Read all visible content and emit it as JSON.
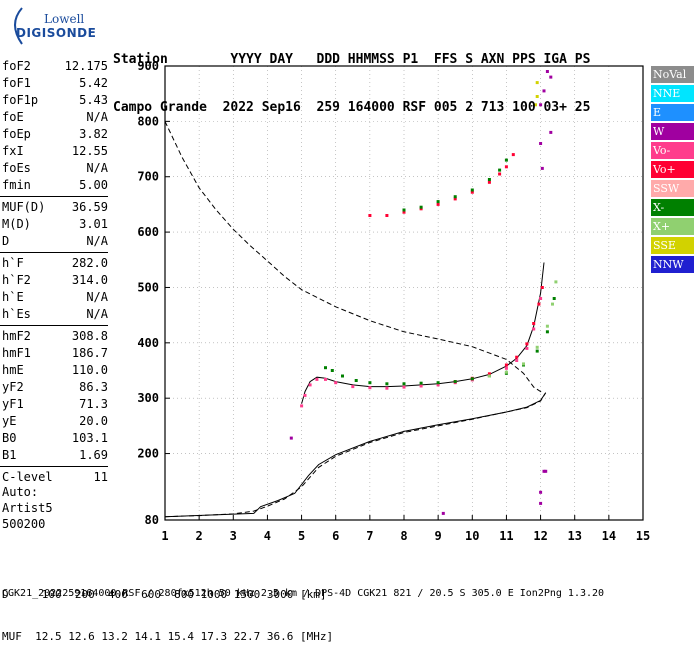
{
  "logo": {
    "line1": "Lowell",
    "line2": "DIGISONDE"
  },
  "header": {
    "line1": "Station        YYYY DAY   DDD HHMMSS P1  FFS S AXN PPS IGA PS",
    "line2": "Campo Grande  2022 Sep16  259 164000 RSF 005 2 713 100 03+ 25"
  },
  "params": [
    {
      "group": [
        {
          "key": "foF2",
          "val": "12.175"
        },
        {
          "key": "foF1",
          "val": "5.42"
        },
        {
          "key": "foF1p",
          "val": "5.43"
        },
        {
          "key": "foE",
          "val": "N/A"
        },
        {
          "key": "foEp",
          "val": "3.82"
        },
        {
          "key": "fxI",
          "val": "12.55"
        },
        {
          "key": "foEs",
          "val": "N/A"
        },
        {
          "key": "fmin",
          "val": "5.00"
        }
      ]
    },
    {
      "group": [
        {
          "key": "MUF(D)",
          "val": "36.59"
        },
        {
          "key": "M(D)",
          "val": "3.01"
        },
        {
          "key": "D",
          "val": "N/A"
        }
      ]
    },
    {
      "group": [
        {
          "key": "h`F",
          "val": "282.0"
        },
        {
          "key": "h`F2",
          "val": "314.0"
        },
        {
          "key": "h`E",
          "val": "N/A"
        },
        {
          "key": "h`Es",
          "val": "N/A"
        }
      ]
    },
    {
      "group": [
        {
          "key": "hmF2",
          "val": "308.8"
        },
        {
          "key": "hmF1",
          "val": "186.7"
        },
        {
          "key": "hmE",
          "val": "110.0"
        },
        {
          "key": "yF2",
          "val": "86.3"
        },
        {
          "key": "yF1",
          "val": "71.3"
        },
        {
          "key": "yE",
          "val": "20.0"
        },
        {
          "key": "B0",
          "val": "103.1"
        },
        {
          "key": "B1",
          "val": "1.69"
        }
      ]
    },
    {
      "group": [
        {
          "key": "C-level",
          "val": "11"
        }
      ]
    }
  ],
  "auto": {
    "line1": "Auto:",
    "line2": "Artist5",
    "line3": "500200"
  },
  "legend": [
    {
      "label": "NoVal",
      "color": "#8c8c8c"
    },
    {
      "label": "NNE",
      "color": "#00e5ff"
    },
    {
      "label": "E",
      "color": "#1e90ff"
    },
    {
      "label": "W",
      "color": "#a000a0"
    },
    {
      "label": "Vo-",
      "color": "#ff3c8c"
    },
    {
      "label": "Vo+",
      "color": "#ff0033"
    },
    {
      "label": "SSW",
      "color": "#ffaaaa"
    },
    {
      "label": "X-",
      "color": "#008000"
    },
    {
      "label": "X+",
      "color": "#90d070"
    },
    {
      "label": "SSE",
      "color": "#d2d200"
    },
    {
      "label": "NNW",
      "color": "#2020d0"
    }
  ],
  "bottom": {
    "line1": "D     100  200  400  600  800 1000 1500 3000 [km]",
    "line2": "MUF  12.5 12.6 13.2 14.1 15.4 17.3 22.7 36.6 [MHz]"
  },
  "footer": "CGK21_2022259164000.RSF / 280fx512h 50 kHz 2.5 km / DPS-4D CGK21 821 / 20.5 S 305.0 E Ion2Png 1.3.20",
  "chart_data": {
    "type": "scatter",
    "xlim": [
      1,
      15
    ],
    "ylim": [
      80,
      900
    ],
    "x_ticks": [
      1,
      2,
      3,
      4,
      5,
      6,
      7,
      8,
      9,
      10,
      11,
      12,
      13,
      14,
      15
    ],
    "y_ticks": [
      80,
      200,
      300,
      400,
      500,
      600,
      700,
      800,
      900
    ],
    "grid": true,
    "series": [
      {
        "kind": "dashed-profile",
        "points": [
          [
            1,
            800
          ],
          [
            1.5,
            735
          ],
          [
            2,
            680
          ],
          [
            2.5,
            640
          ],
          [
            3,
            605
          ],
          [
            3.5,
            575
          ],
          [
            4,
            548
          ],
          [
            4.5,
            520
          ],
          [
            5,
            496
          ],
          [
            6,
            465
          ],
          [
            7,
            440
          ],
          [
            8,
            420
          ],
          [
            9,
            407
          ],
          [
            10,
            393
          ],
          [
            11,
            370
          ],
          [
            11.5,
            345
          ],
          [
            11.8,
            320
          ],
          [
            12,
            312
          ],
          [
            12.1,
            310
          ]
        ]
      },
      {
        "kind": "dashed-profile",
        "points": [
          [
            1,
            86
          ],
          [
            2,
            88
          ],
          [
            3,
            91
          ],
          [
            3.6,
            96
          ],
          [
            4,
            105
          ],
          [
            4.5,
            118
          ],
          [
            5,
            140
          ],
          [
            5.5,
            175
          ],
          [
            6,
            195
          ],
          [
            7,
            220
          ],
          [
            8,
            238
          ],
          [
            9,
            250
          ],
          [
            10,
            262
          ],
          [
            11,
            275
          ],
          [
            11.6,
            283
          ],
          [
            12,
            295
          ],
          [
            12.15,
            310
          ]
        ]
      },
      {
        "kind": "solid-profile",
        "points": [
          [
            1,
            86
          ],
          [
            3.6,
            92
          ],
          [
            3.8,
            104
          ],
          [
            4.3,
            115
          ],
          [
            4.8,
            128
          ],
          [
            5.2,
            160
          ],
          [
            5.5,
            180
          ],
          [
            6,
            198
          ],
          [
            7,
            222
          ],
          [
            8,
            240
          ],
          [
            9,
            252
          ],
          [
            10,
            263
          ],
          [
            11,
            275
          ],
          [
            11.6,
            284
          ],
          [
            12,
            296
          ],
          [
            12.15,
            310
          ]
        ]
      },
      {
        "kind": "solid-trace",
        "points": [
          [
            5.0,
            290
          ],
          [
            5.1,
            312
          ],
          [
            5.25,
            330
          ],
          [
            5.45,
            338
          ],
          [
            5.7,
            336
          ],
          [
            6,
            330
          ],
          [
            6.5,
            324
          ],
          [
            7,
            321
          ],
          [
            7.5,
            321
          ],
          [
            8,
            322
          ],
          [
            8.5,
            324
          ],
          [
            9,
            326
          ],
          [
            9.5,
            330
          ],
          [
            10,
            335
          ],
          [
            10.5,
            343
          ],
          [
            11,
            358
          ],
          [
            11.3,
            372
          ],
          [
            11.6,
            395
          ],
          [
            11.8,
            430
          ],
          [
            12.0,
            490
          ],
          [
            12.1,
            545
          ]
        ]
      },
      {
        "name": "Vo-",
        "color": "#ff3c8c",
        "points": [
          [
            5.0,
            286
          ],
          [
            5.1,
            305
          ],
          [
            5.25,
            324
          ],
          [
            5.45,
            334
          ],
          [
            5.7,
            334
          ],
          [
            6,
            328
          ],
          [
            6.5,
            321
          ],
          [
            7,
            319
          ],
          [
            7.5,
            318
          ],
          [
            8,
            320
          ],
          [
            8.5,
            322
          ],
          [
            9,
            324
          ],
          [
            9.5,
            328
          ],
          [
            10,
            333
          ],
          [
            10.5,
            340
          ],
          [
            11,
            354
          ],
          [
            11.3,
            368
          ],
          [
            11.6,
            390
          ],
          [
            11.8,
            425
          ],
          [
            12.0,
            480
          ]
        ]
      },
      {
        "name": "Vo+",
        "color": "#ff0033",
        "points": [
          [
            9.5,
            330
          ],
          [
            10,
            336
          ],
          [
            10.5,
            344
          ],
          [
            11,
            360
          ],
          [
            11.3,
            374
          ],
          [
            11.6,
            398
          ],
          [
            11.8,
            435
          ],
          [
            11.95,
            470
          ],
          [
            12.05,
            500
          ]
        ]
      },
      {
        "name": "X-",
        "color": "#008000",
        "points": [
          [
            5.7,
            355
          ],
          [
            5.9,
            350
          ],
          [
            6.2,
            340
          ],
          [
            6.6,
            332
          ],
          [
            7,
            328
          ],
          [
            7.5,
            326
          ],
          [
            8,
            326
          ],
          [
            8.5,
            327
          ],
          [
            9,
            328
          ],
          [
            9.5,
            330
          ],
          [
            10,
            335
          ],
          [
            10.5,
            340
          ],
          [
            11,
            345
          ],
          [
            11.5,
            360
          ],
          [
            11.9,
            385
          ],
          [
            12.2,
            420
          ],
          [
            12.4,
            480
          ]
        ]
      },
      {
        "name": "X+",
        "color": "#90d070",
        "points": [
          [
            10.5,
            340
          ],
          [
            11,
            347
          ],
          [
            11.5,
            362
          ],
          [
            11.9,
            392
          ],
          [
            12.2,
            430
          ],
          [
            12.35,
            470
          ],
          [
            12.45,
            510
          ]
        ]
      },
      {
        "name": "Vo+",
        "color": "#ff0033",
        "points": [
          [
            7.0,
            630
          ],
          [
            7.5,
            630
          ],
          [
            8,
            636
          ],
          [
            8.5,
            642
          ],
          [
            9,
            650
          ],
          [
            9.5,
            660
          ],
          [
            10,
            672
          ],
          [
            10.5,
            690
          ],
          [
            10.8,
            705
          ],
          [
            11,
            718
          ],
          [
            11.2,
            740
          ]
        ]
      },
      {
        "name": "X-",
        "color": "#008000",
        "points": [
          [
            8.0,
            640
          ],
          [
            8.5,
            645
          ],
          [
            9,
            655
          ],
          [
            9.5,
            664
          ],
          [
            10,
            676
          ],
          [
            10.5,
            695
          ],
          [
            10.8,
            712
          ],
          [
            11.0,
            730
          ]
        ]
      },
      {
        "name": "W",
        "color": "#a000a0",
        "points": [
          [
            4.7,
            228
          ],
          [
            12.0,
            830
          ],
          [
            12.1,
            855
          ],
          [
            12.0,
            760
          ],
          [
            12.05,
            715
          ],
          [
            12.2,
            890
          ],
          [
            12.3,
            880
          ],
          [
            12.3,
            780
          ],
          [
            12.1,
            168
          ],
          [
            12.15,
            168
          ],
          [
            12.0,
            130
          ],
          [
            12.0,
            110
          ],
          [
            9.15,
            92
          ]
        ]
      },
      {
        "name": "SSE",
        "color": "#d2d200",
        "points": [
          [
            11.9,
            870
          ],
          [
            11.9,
            845
          ],
          [
            11.85,
            830
          ]
        ]
      }
    ]
  }
}
